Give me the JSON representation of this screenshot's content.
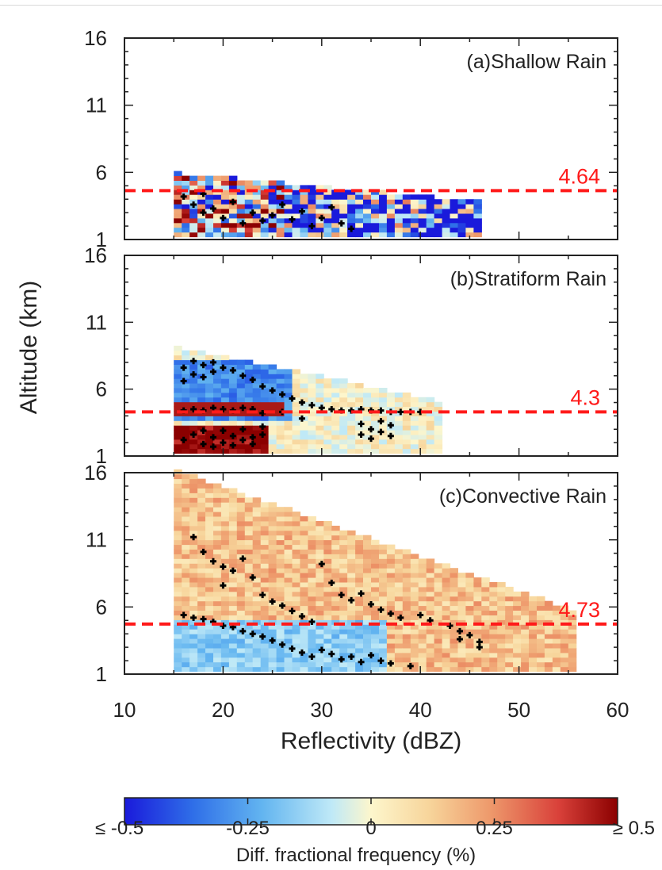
{
  "chart_data": {
    "type": "heatmap",
    "x_label": "Reflectivity (dBZ)",
    "y_label": "Altitude (km)",
    "xlim": [
      10,
      60
    ],
    "ylim": [
      1,
      16
    ],
    "x_ticks": [
      10,
      20,
      30,
      40,
      50,
      60
    ],
    "y_ticks": [
      1,
      6,
      11,
      16
    ],
    "colorbar": {
      "label": "Diff. fractional frequency (%)",
      "range": [
        -0.5,
        0.5
      ],
      "tick_labels": [
        "≤ -0.5",
        "-0.25",
        "0",
        "0.25",
        "≥ 0.5"
      ],
      "colormap": [
        "#1a1adb",
        "#2f6fe8",
        "#63b5f0",
        "#bfe9f7",
        "#fdf6cc",
        "#f7d49a",
        "#ee9a6c",
        "#d9413a",
        "#8b0000"
      ]
    },
    "reference_line_color": "#ff1a1a",
    "panels": [
      {
        "label": "(a)Shallow Rain",
        "ref_line": 4.64,
        "ref_label": "4.64",
        "x_range": [
          15,
          46
        ],
        "top_altitude": 5.8,
        "markers": [
          [
            16,
            4.2
          ],
          [
            17,
            3.6
          ],
          [
            18,
            4.4
          ],
          [
            18,
            3.0
          ],
          [
            19,
            3.3
          ],
          [
            20,
            2.6
          ],
          [
            21,
            3.8
          ],
          [
            22,
            2.2
          ],
          [
            23,
            3.0
          ],
          [
            24,
            2.4
          ],
          [
            25,
            2.8
          ],
          [
            26,
            3.6
          ],
          [
            27,
            2.5
          ],
          [
            28,
            3.1
          ],
          [
            29,
            2.0
          ],
          [
            30,
            2.6
          ],
          [
            31,
            3.4
          ],
          [
            32,
            2.2
          ],
          [
            33,
            1.8
          ]
        ]
      },
      {
        "label": "(b)Stratiform Rain",
        "ref_line": 4.3,
        "ref_label": "4.3",
        "x_range": [
          15,
          42
        ],
        "top_altitude": 9.0,
        "markers": [
          [
            16,
            7.6
          ],
          [
            16,
            6.6
          ],
          [
            17,
            8.1
          ],
          [
            17,
            7.1
          ],
          [
            18,
            7.8
          ],
          [
            18,
            6.9
          ],
          [
            19,
            8.0
          ],
          [
            19,
            7.3
          ],
          [
            20,
            7.6
          ],
          [
            21,
            7.4
          ],
          [
            22,
            7.0
          ],
          [
            23,
            6.7
          ],
          [
            24,
            6.2
          ],
          [
            25,
            5.9
          ],
          [
            26,
            5.6
          ],
          [
            27,
            5.3
          ],
          [
            28,
            5.0
          ],
          [
            29,
            4.8
          ],
          [
            30,
            4.6
          ],
          [
            31,
            4.5
          ],
          [
            32,
            4.4
          ],
          [
            33,
            4.4
          ],
          [
            34,
            4.5
          ],
          [
            35,
            4.4
          ],
          [
            36,
            4.4
          ],
          [
            37,
            4.3
          ],
          [
            38,
            4.3
          ],
          [
            39,
            4.3
          ],
          [
            40,
            4.3
          ],
          [
            16,
            4.4
          ],
          [
            17,
            4.5
          ],
          [
            18,
            4.4
          ],
          [
            19,
            4.6
          ],
          [
            20,
            4.5
          ],
          [
            21,
            4.4
          ],
          [
            22,
            4.6
          ],
          [
            23,
            4.5
          ],
          [
            24,
            4.2
          ],
          [
            26,
            4.3
          ],
          [
            28,
            3.8
          ],
          [
            16,
            2.2
          ],
          [
            17,
            2.6
          ],
          [
            18,
            1.9
          ],
          [
            18,
            2.9
          ],
          [
            19,
            2.4
          ],
          [
            19,
            1.7
          ],
          [
            20,
            2.0
          ],
          [
            20,
            2.9
          ],
          [
            21,
            2.5
          ],
          [
            21,
            1.8
          ],
          [
            22,
            2.2
          ],
          [
            22,
            3.0
          ],
          [
            23,
            2.4
          ],
          [
            23,
            1.9
          ],
          [
            24,
            2.6
          ],
          [
            24,
            3.2
          ],
          [
            34,
            3.4
          ],
          [
            34,
            2.6
          ],
          [
            35,
            3.0
          ],
          [
            35,
            2.3
          ],
          [
            36,
            3.6
          ],
          [
            36,
            2.8
          ],
          [
            37,
            3.3
          ],
          [
            37,
            2.5
          ]
        ]
      },
      {
        "label": "(c)Convective Rain",
        "ref_line": 4.73,
        "ref_label": "4.73",
        "x_range": [
          15,
          55
        ],
        "top_altitude": 16,
        "markers": [
          [
            16,
            5.4
          ],
          [
            17,
            5.2
          ],
          [
            17,
            11.2
          ],
          [
            18,
            10.1
          ],
          [
            18,
            5.1
          ],
          [
            19,
            9.4
          ],
          [
            19,
            4.9
          ],
          [
            20,
            9.0
          ],
          [
            20,
            4.6
          ],
          [
            20,
            7.6
          ],
          [
            21,
            8.7
          ],
          [
            21,
            4.5
          ],
          [
            22,
            9.6
          ],
          [
            22,
            4.2
          ],
          [
            23,
            8.2
          ],
          [
            23,
            4.0
          ],
          [
            24,
            6.9
          ],
          [
            24,
            3.8
          ],
          [
            25,
            6.4
          ],
          [
            25,
            3.5
          ],
          [
            26,
            6.1
          ],
          [
            26,
            3.2
          ],
          [
            27,
            5.7
          ],
          [
            27,
            2.9
          ],
          [
            28,
            5.3
          ],
          [
            28,
            2.6
          ],
          [
            29,
            4.9
          ],
          [
            29,
            2.3
          ],
          [
            30,
            9.2
          ],
          [
            30,
            2.8
          ],
          [
            31,
            7.8
          ],
          [
            31,
            2.5
          ],
          [
            32,
            6.9
          ],
          [
            32,
            2.1
          ],
          [
            33,
            6.5
          ],
          [
            33,
            2.3
          ],
          [
            34,
            7.0
          ],
          [
            34,
            1.9
          ],
          [
            35,
            6.2
          ],
          [
            35,
            2.4
          ],
          [
            36,
            5.8
          ],
          [
            36,
            2.0
          ],
          [
            37,
            5.5
          ],
          [
            37,
            1.8
          ],
          [
            38,
            5.2
          ],
          [
            39,
            1.6
          ],
          [
            40,
            5.4
          ],
          [
            41,
            5.0
          ],
          [
            43,
            4.6
          ],
          [
            44,
            4.2
          ],
          [
            44,
            3.6
          ],
          [
            45,
            3.9
          ],
          [
            46,
            3.4
          ],
          [
            46,
            3.0
          ]
        ]
      }
    ]
  }
}
